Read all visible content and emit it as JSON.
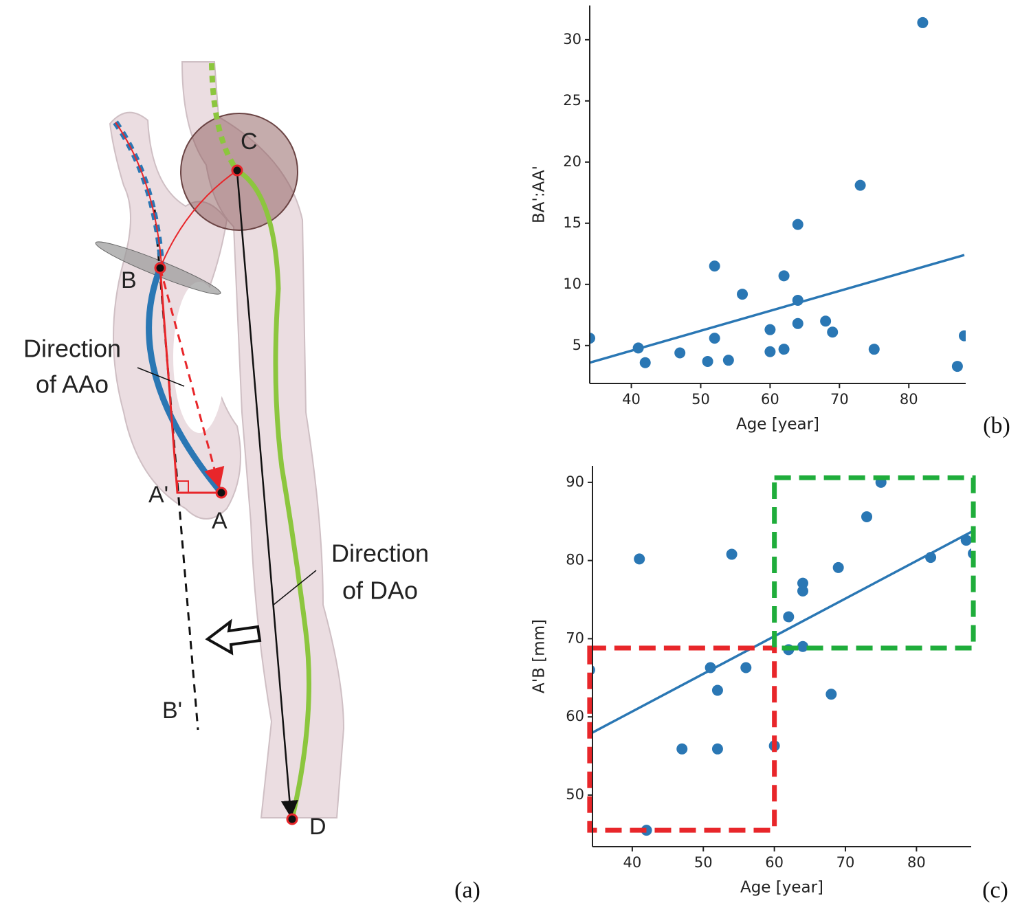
{
  "diagram": {
    "points": [
      "C",
      "B",
      "A'",
      "A",
      "B'",
      "D"
    ],
    "aao_label": [
      "Direction",
      "of AAo"
    ],
    "dao_label": [
      "Direction",
      "of DAo"
    ],
    "panel": "(a)"
  },
  "chart_data": [
    {
      "type": "scatter",
      "panel": "(b)",
      "x_label": "Age [year]",
      "y_label": "BA':AA'",
      "color": "#2a77b4",
      "x": [
        34,
        41,
        42,
        47,
        51,
        52,
        52,
        54,
        56,
        60,
        60,
        62,
        62,
        64,
        64,
        64,
        68,
        69,
        73,
        75,
        82,
        87,
        88
      ],
      "values": [
        5.6,
        4.8,
        3.6,
        4.4,
        3.7,
        11.5,
        5.6,
        3.8,
        9.2,
        6.3,
        4.5,
        10.7,
        4.7,
        14.9,
        8.7,
        6.8,
        7.0,
        6.1,
        18.1,
        4.7,
        31.4,
        3.3,
        5.8
      ],
      "fit": {
        "x": [
          34,
          88
        ],
        "values": [
          3.6,
          12.4
        ]
      },
      "xlim": [
        34,
        88.2
      ],
      "ylim": [
        1.9,
        32.8
      ],
      "xticks": [
        40,
        50,
        60,
        70,
        80
      ],
      "yticks": [
        5,
        10,
        15,
        20,
        25,
        30
      ]
    },
    {
      "type": "scatter",
      "panel": "(c)",
      "x_label": "Age [year]",
      "y_label": "A'B [mm]",
      "color": "#2a77b4",
      "x": [
        34,
        41,
        42,
        47,
        51,
        52,
        52,
        54,
        56,
        60,
        62,
        62,
        64,
        64,
        64,
        68,
        69,
        73,
        75,
        82,
        87,
        88
      ],
      "values": [
        66.0,
        80.2,
        45.5,
        55.9,
        66.3,
        63.4,
        55.9,
        80.8,
        66.3,
        56.3,
        72.8,
        68.6,
        77.1,
        76.1,
        69.0,
        62.9,
        79.1,
        85.6,
        90.0,
        80.4,
        82.6,
        80.9
      ],
      "fit": {
        "x": [
          34,
          88
        ],
        "values": [
          57.8,
          83.8
        ]
      },
      "regions": [
        {
          "color": "#e8262a",
          "x": [
            34,
            60
          ],
          "values": [
            45.5,
            68.8
          ]
        },
        {
          "color": "#1fad3b",
          "x": [
            60,
            88
          ],
          "values": [
            68.8,
            90.6
          ]
        }
      ],
      "xlim": [
        34.4,
        87.7
      ],
      "ylim": [
        43.4,
        92.1
      ],
      "xticks": [
        40,
        50,
        60,
        70,
        80
      ],
      "yticks": [
        50,
        60,
        70,
        80,
        90
      ]
    }
  ]
}
